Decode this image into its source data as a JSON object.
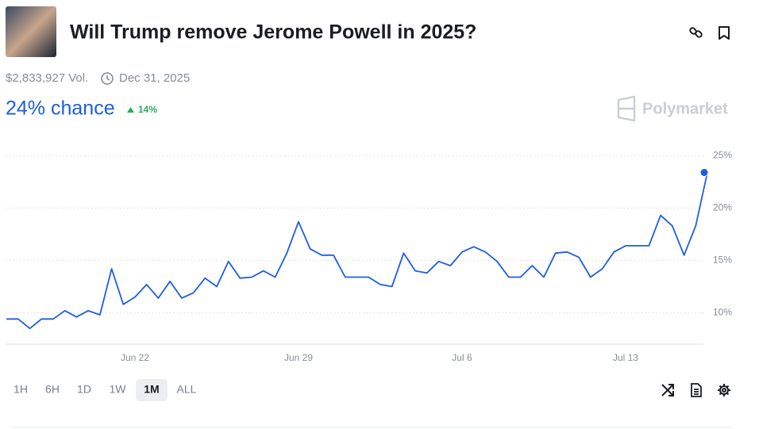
{
  "header": {
    "title": "Will Trump remove Jerome Powell in 2025?",
    "volume": "$2,833,927 Vol.",
    "end_date": "Dec 31, 2025",
    "chance": "24% chance",
    "change": "14%",
    "brand": "Polymarket"
  },
  "chart_data": {
    "type": "line",
    "color": "#1d5ee0",
    "categories": [
      null,
      null,
      null,
      null,
      null,
      null,
      null,
      null,
      null,
      null,
      null,
      "Jun 22",
      null,
      null,
      null,
      null,
      null,
      null,
      null,
      null,
      null,
      null,
      null,
      null,
      null,
      "Jun 29",
      null,
      null,
      null,
      null,
      null,
      null,
      null,
      null,
      null,
      null,
      null,
      null,
      null,
      "Jul 6",
      null,
      null,
      null,
      null,
      null,
      null,
      null,
      null,
      null,
      null,
      null,
      null,
      null,
      "Jul 13",
      null,
      null,
      null,
      null,
      null,
      null,
      null
    ],
    "values": [
      9.4,
      9.4,
      8.5,
      9.4,
      9.4,
      10.2,
      9.6,
      10.2,
      9.8,
      14.2,
      10.8,
      11.5,
      12.7,
      11.4,
      13,
      11.4,
      11.9,
      13.3,
      12.5,
      14.9,
      13.3,
      13.4,
      14,
      13.4,
      15.7,
      18.7,
      16.1,
      15.5,
      15.5,
      13.4,
      13.4,
      13.4,
      12.7,
      12.5,
      15.7,
      14,
      13.8,
      14.9,
      14.5,
      15.8,
      16.3,
      15.8,
      14.9,
      13.4,
      13.4,
      14.5,
      13.4,
      15.7,
      15.8,
      15.3,
      13.4,
      14.2,
      15.8,
      16.4,
      16.4,
      16.4,
      19.3,
      18.3,
      15.5,
      18.3,
      23.4
    ],
    "ylim": [
      7,
      27
    ],
    "yticks": [
      {
        "value": 10,
        "label": "10%"
      },
      {
        "value": 15,
        "label": "15%"
      },
      {
        "value": 20,
        "label": "20%"
      },
      {
        "value": 25,
        "label": "25%"
      }
    ],
    "grid": true
  },
  "time_ranges": [
    "1H",
    "6H",
    "1D",
    "1W",
    "1M",
    "ALL"
  ]
}
